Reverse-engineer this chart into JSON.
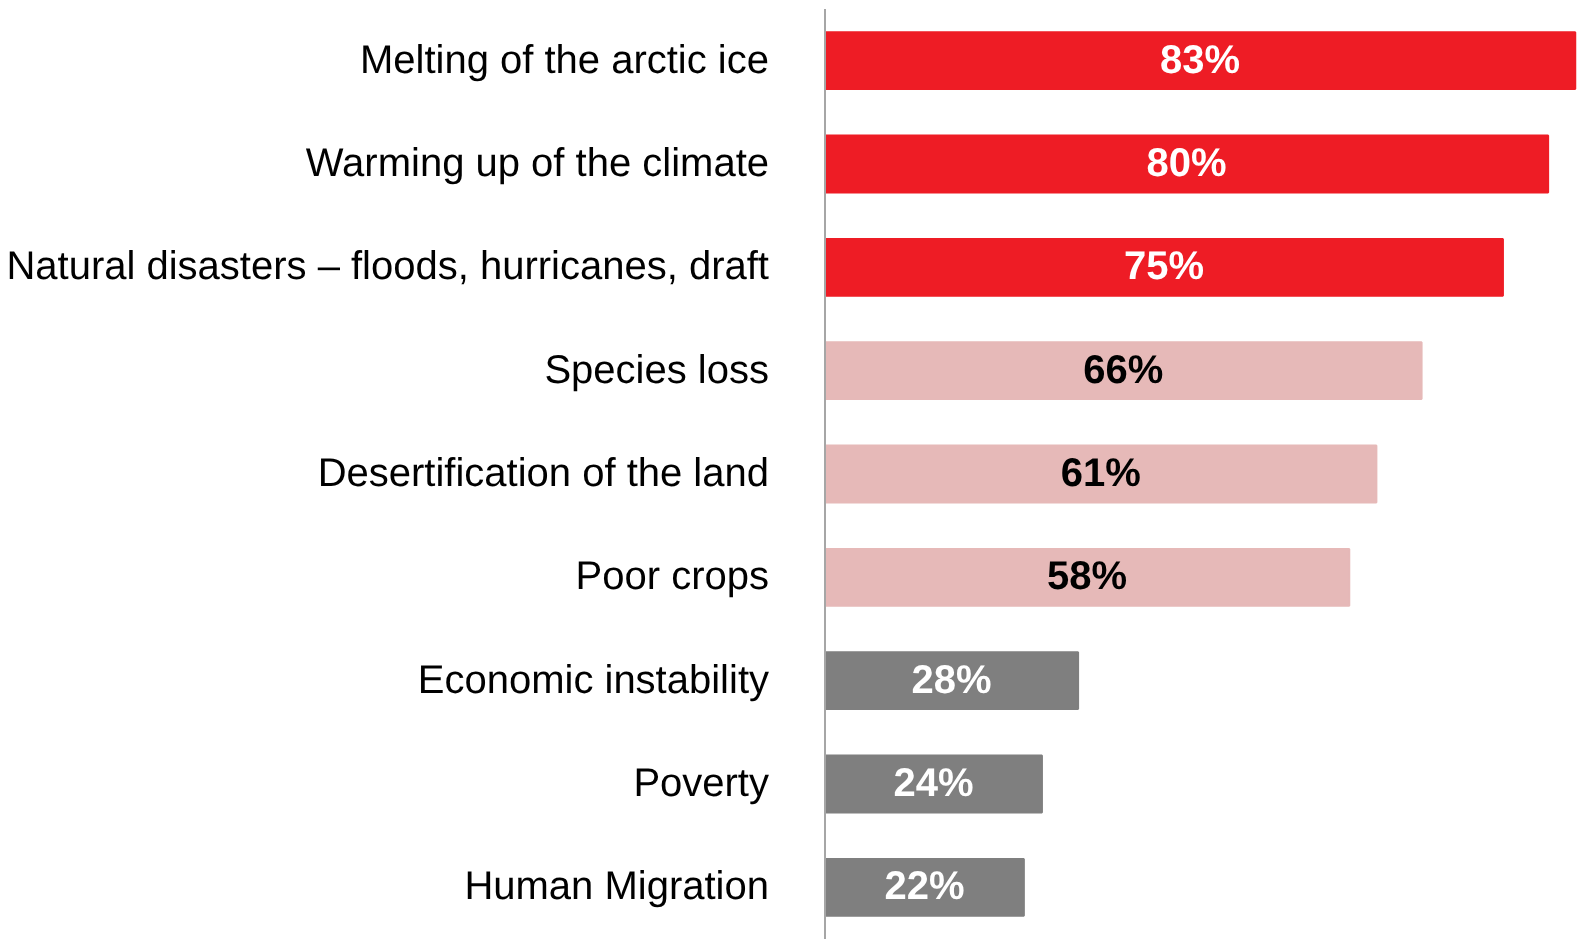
{
  "chart_data": {
    "type": "bar",
    "orientation": "horizontal",
    "categories": [
      "Melting of the arctic ice",
      "Warming up of the climate",
      "Natural disasters – floods, hurricanes, draft",
      "Species loss",
      "Desertification of the land",
      "Poor crops",
      "Economic instability",
      "Poverty",
      "Human Migration"
    ],
    "values": [
      83,
      80,
      75,
      66,
      61,
      58,
      28,
      24,
      22
    ],
    "value_labels": [
      "83%",
      "80%",
      "75%",
      "66%",
      "61%",
      "58%",
      "28%",
      "24%",
      "22%"
    ],
    "colors": [
      "#ee1c25",
      "#ee1c25",
      "#ee1c25",
      "#e6b9b8",
      "#e6b9b8",
      "#e6b9b8",
      "#7f7f7f",
      "#7f7f7f",
      "#7f7f7f"
    ],
    "grid": false
  }
}
